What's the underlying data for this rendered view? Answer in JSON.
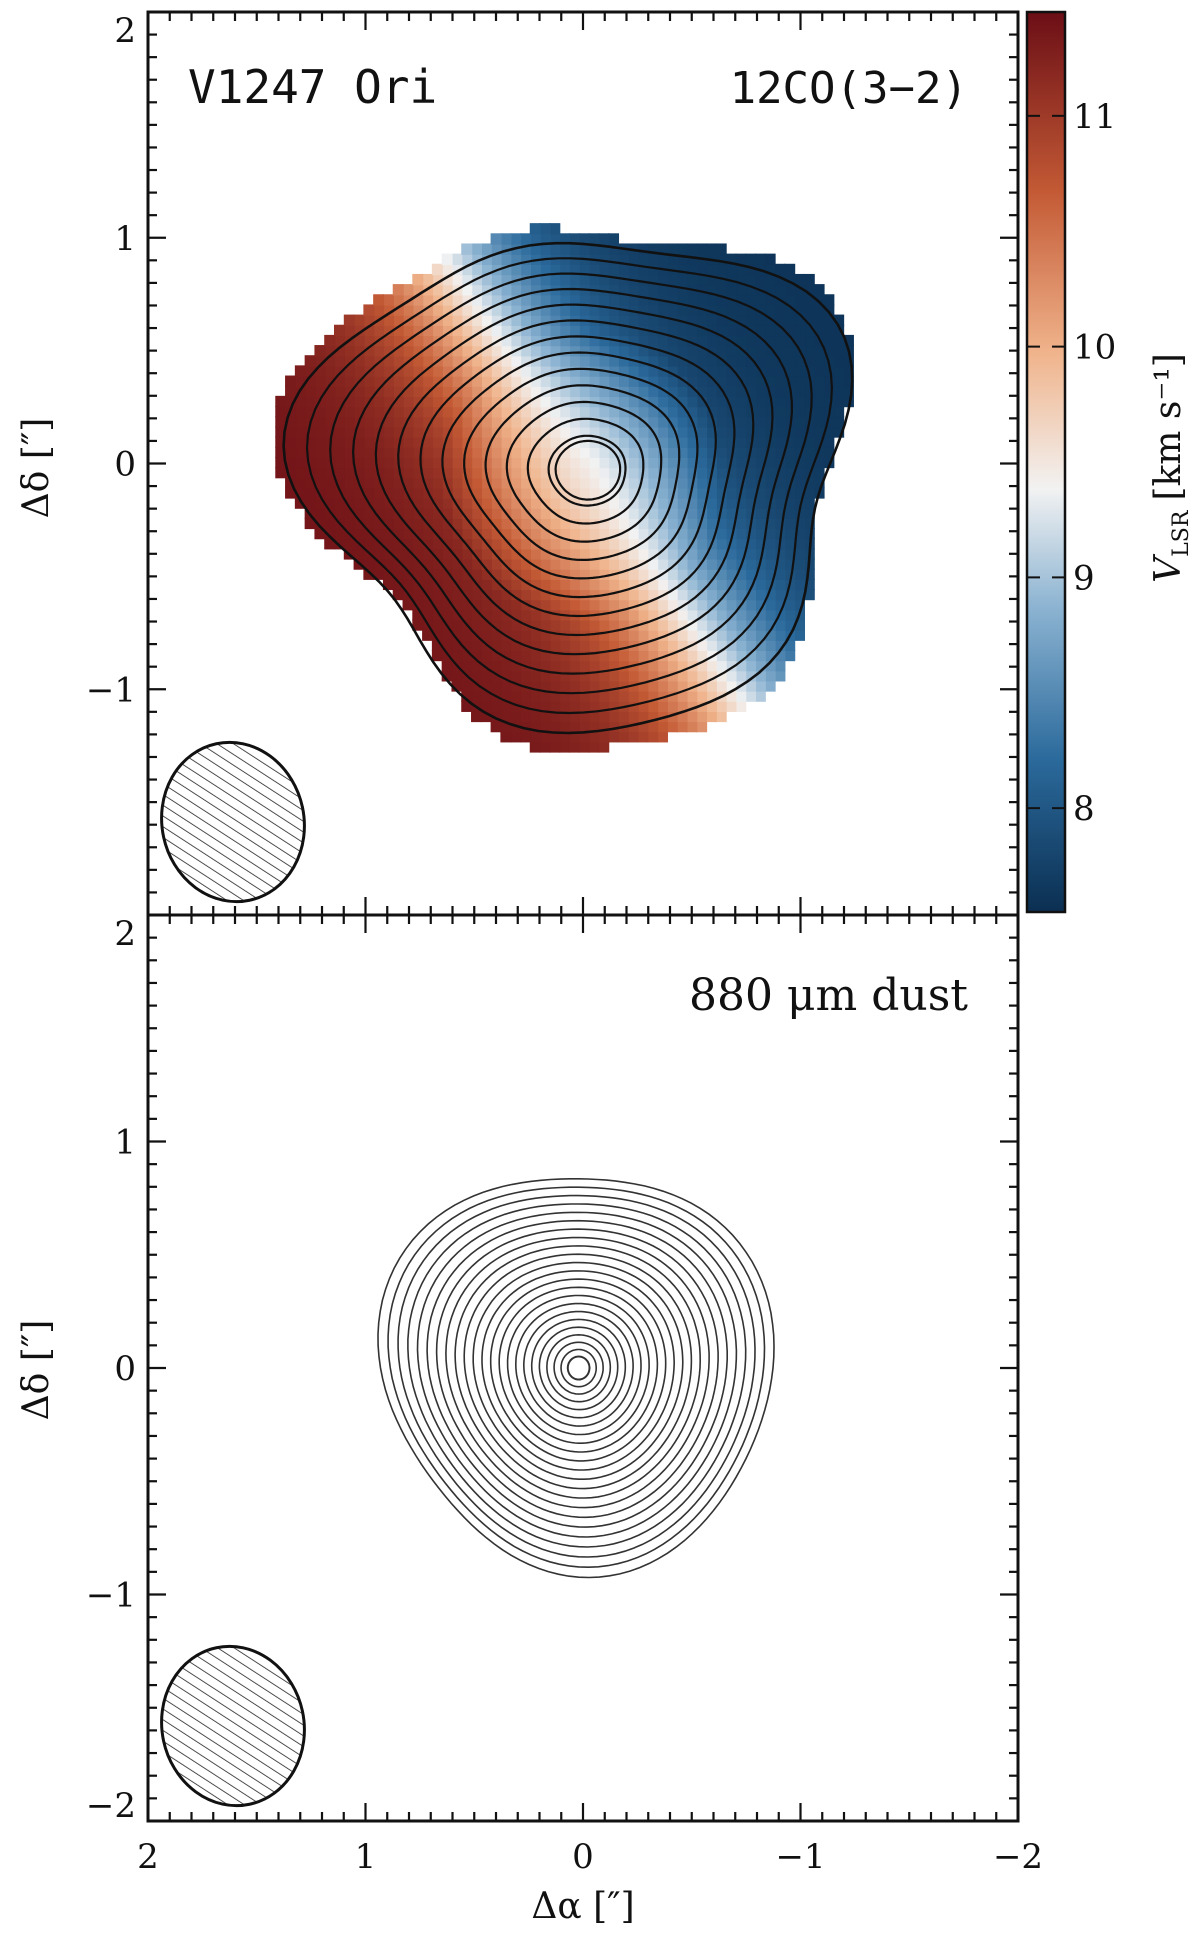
{
  "chart_data": [
    {
      "type": "heatmap",
      "panel": "top",
      "title_left": "V1247 Ori",
      "title_right": "12CO(3−2)",
      "xlabel": "Δα [″]",
      "ylabel": "Δδ [″]",
      "xlim": [
        2,
        -2
      ],
      "ylim": [
        -2,
        2
      ],
      "x_ticks": [
        2,
        1,
        0,
        -1,
        -2
      ],
      "y_ticks": [
        -2,
        -1,
        0,
        1,
        2
      ],
      "x_tick_labels": [
        "2",
        "1",
        "0",
        "−1",
        "−2"
      ],
      "y_tick_labels": [
        "−2",
        "−1",
        "0",
        "1",
        "2"
      ],
      "colorbar": {
        "label": "V",
        "label_subscript": "LSR",
        "unit": "[km s⁻¹]",
        "range": [
          7.55,
          11.45
        ],
        "ticks": [
          8,
          9,
          10,
          11
        ],
        "tick_labels": [
          "8",
          "9",
          "10",
          "11"
        ],
        "colormap": [
          "#0b2f52",
          "#2b6a9c",
          "#8db4d2",
          "#f2f2f2",
          "#f0b48c",
          "#c35a35",
          "#6b0e16"
        ]
      },
      "velocity_field": {
        "systemic_velocity": 9.5,
        "peak_amplitude": 1.9,
        "red_shifted_side": "east-south",
        "blue_shifted_side": "west-north",
        "disk_center": [
          0.0,
          -0.05
        ],
        "disk_radius": 1.2
      },
      "contour_levels": 14,
      "beam": {
        "center": [
          1.6,
          -1.6
        ],
        "major_axis": 0.72,
        "minor_axis": 0.64
      }
    },
    {
      "type": "contour",
      "panel": "bottom",
      "title_right": "880 μm dust",
      "xlabel": "Δα [″]",
      "ylabel": "Δδ [″]",
      "xlim": [
        2,
        -2
      ],
      "ylim": [
        -2,
        2
      ],
      "x_ticks": [
        2,
        1,
        0,
        -1,
        -2
      ],
      "x_tick_labels": [
        "2",
        "1",
        "0",
        "−1",
        "−2"
      ],
      "y_ticks": [
        -2,
        -1,
        0,
        1,
        2
      ],
      "y_tick_labels": [
        "−2",
        "−1",
        "0",
        "1",
        "2"
      ],
      "center": [
        0.02,
        0.0
      ],
      "outer_radius": 0.9,
      "contour_levels": 24,
      "beam": {
        "center": [
          1.6,
          -1.6
        ],
        "major_axis": 0.72,
        "minor_axis": 0.64
      }
    }
  ]
}
